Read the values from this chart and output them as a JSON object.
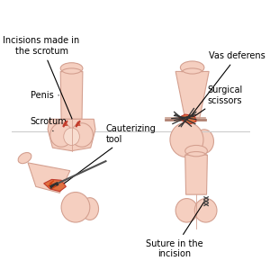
{
  "background_color": "#ffffff",
  "skin_color": "#f5cfc0",
  "skin_outline": "#d4a090",
  "incision_color": "#c0392b",
  "orange_highlight": "#e07040",
  "scissors_color": "#303030",
  "text_color": "#000000",
  "line_color": "#000000",
  "labels": {
    "top_left_title": "Incisions made in\nthe scrotum",
    "top_right_title": "Vas deferens",
    "top_right_sub": "Surgical\nscissors",
    "bottom_left_sub": "Cauterizing\ntool",
    "bottom_right_sub": "Suture in the\nincision",
    "penis": "Penis",
    "scrotum": "Scrotum"
  },
  "divider_color": "#cccccc",
  "font_size": 7.0
}
